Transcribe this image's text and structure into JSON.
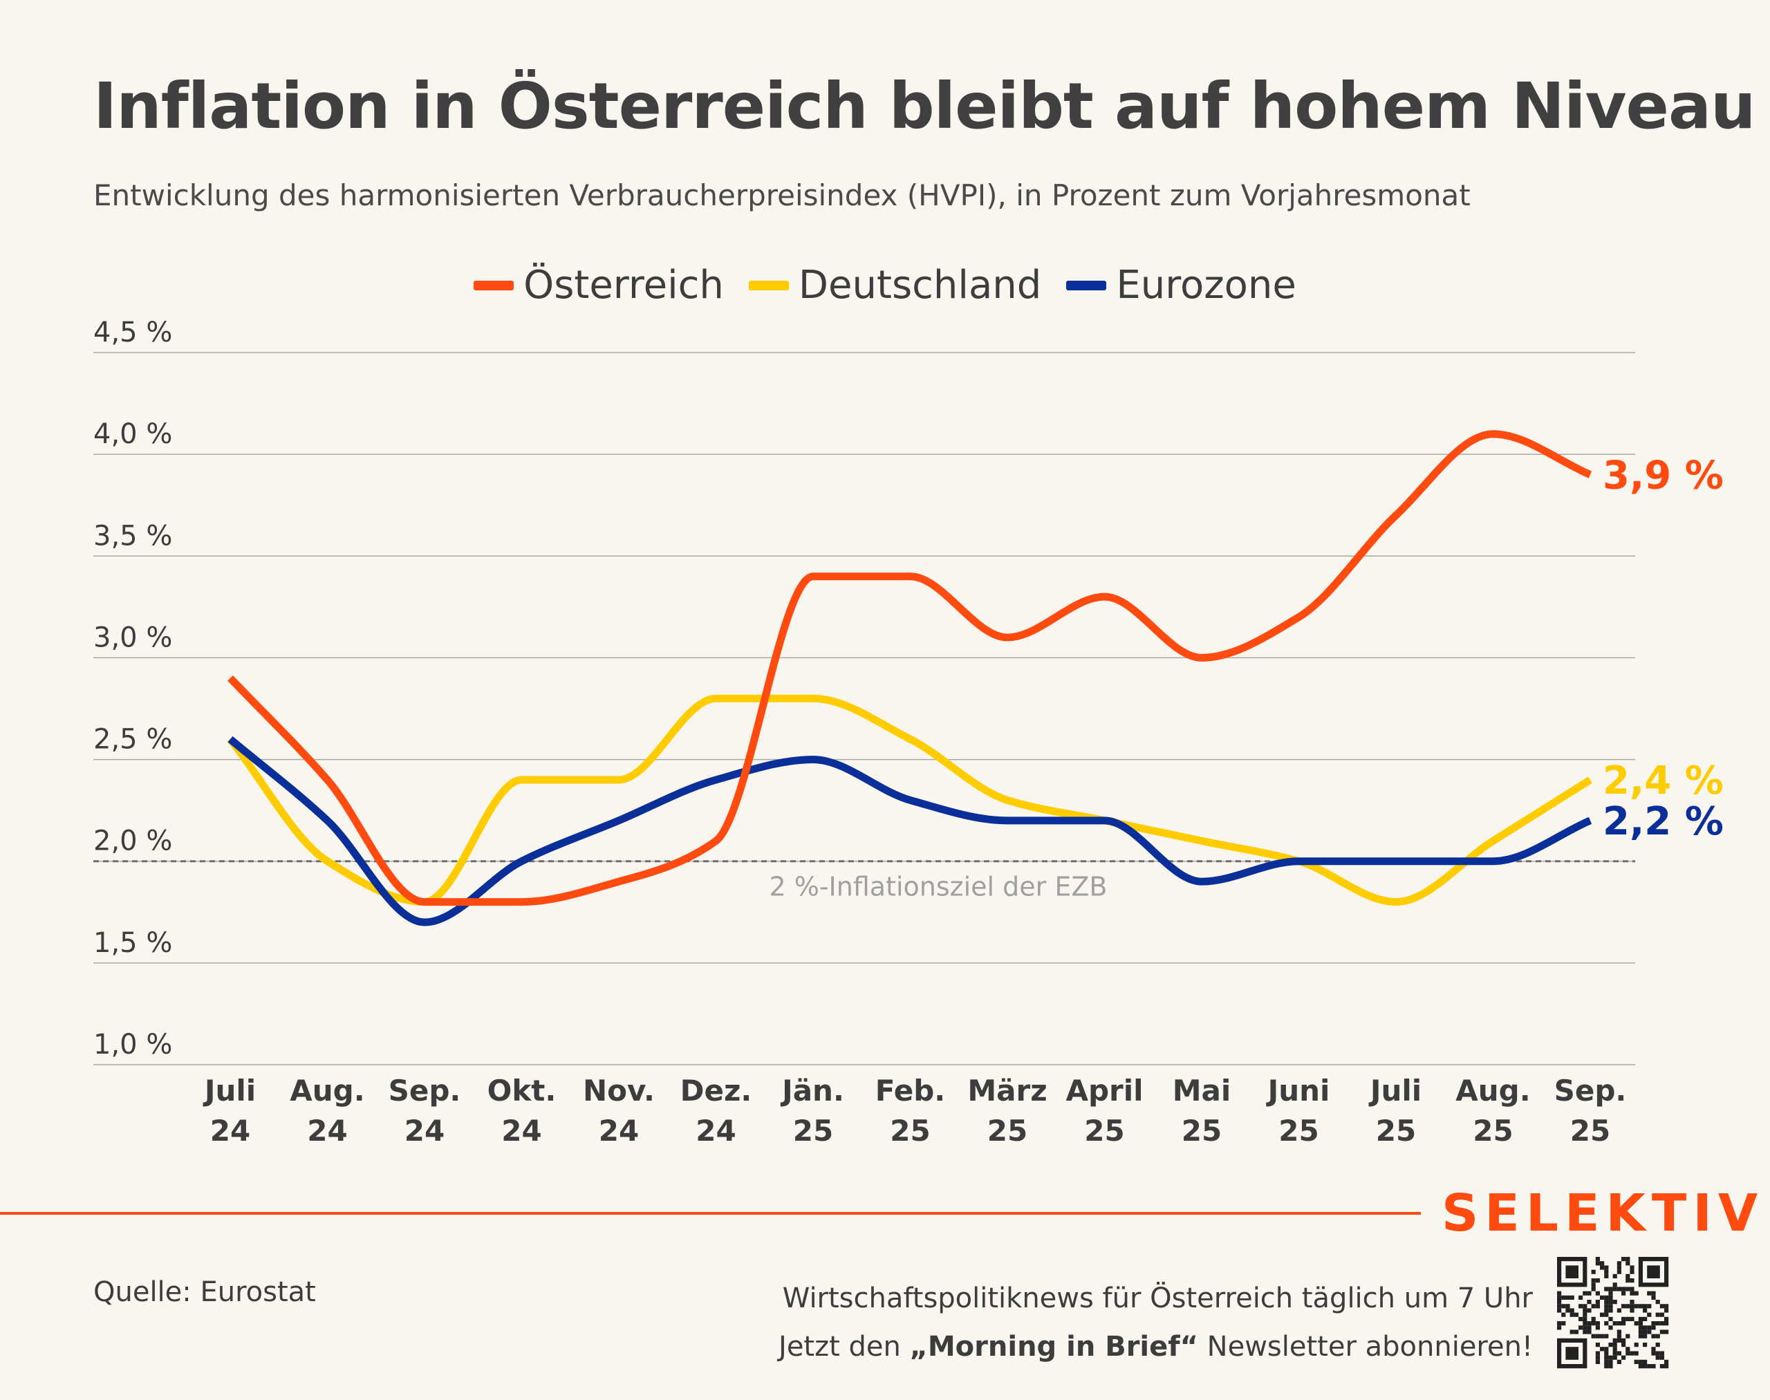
{
  "title": "Inflation in Österreich bleibt auf hohem Niveau",
  "subtitle": "Entwicklung des harmonisierten Verbraucherpreisindex (HVPI), in Prozent zum Vorjahresmonat",
  "colors": {
    "background": "#f8f6ee",
    "austria": "#ff4a10",
    "germany": "#ffcc00",
    "eurozone": "#0a2f99",
    "grid": "#9a9a9a",
    "target": "#7a7a7a",
    "text": "#3d3d3d"
  },
  "chart_data": {
    "type": "line",
    "ylim": [
      1.0,
      4.5
    ],
    "yticks": [
      {
        "value": 1.0,
        "label": "1,0 %"
      },
      {
        "value": 1.5,
        "label": "1,5 %"
      },
      {
        "value": 2.0,
        "label": "2,0 %"
      },
      {
        "value": 2.5,
        "label": "2,5 %"
      },
      {
        "value": 3.0,
        "label": "3,0 %"
      },
      {
        "value": 3.5,
        "label": "3,5 %"
      },
      {
        "value": 4.0,
        "label": "4,0 %"
      },
      {
        "value": 4.5,
        "label": "4,5 %"
      }
    ],
    "categories": [
      {
        "month": "Juli",
        "year": "24"
      },
      {
        "month": "Aug.",
        "year": "24"
      },
      {
        "month": "Sep.",
        "year": "24"
      },
      {
        "month": "Okt.",
        "year": "24"
      },
      {
        "month": "Nov.",
        "year": "24"
      },
      {
        "month": "Dez.",
        "year": "24"
      },
      {
        "month": "Jän.",
        "year": "25"
      },
      {
        "month": "Feb.",
        "year": "25"
      },
      {
        "month": "März",
        "year": "25"
      },
      {
        "month": "April",
        "year": "25"
      },
      {
        "month": "Mai",
        "year": "25"
      },
      {
        "month": "Juni",
        "year": "25"
      },
      {
        "month": "Juli",
        "year": "25"
      },
      {
        "month": "Aug.",
        "year": "25"
      },
      {
        "month": "Sep.",
        "year": "25"
      }
    ],
    "series": [
      {
        "name": "Österreich",
        "color": "#ff4a10",
        "end_label": "3,9 %",
        "values": [
          2.9,
          2.4,
          1.8,
          1.8,
          1.9,
          2.1,
          3.4,
          3.4,
          3.1,
          3.3,
          3.0,
          3.2,
          3.7,
          4.1,
          3.9
        ]
      },
      {
        "name": "Deutschland",
        "color": "#ffcc00",
        "end_label": "2,4 %",
        "values": [
          2.6,
          2.0,
          1.8,
          2.4,
          2.4,
          2.8,
          2.8,
          2.6,
          2.3,
          2.2,
          2.1,
          2.0,
          1.8,
          2.1,
          2.4
        ]
      },
      {
        "name": "Eurozone",
        "color": "#0a2f99",
        "end_label": "2,2 %",
        "values": [
          2.6,
          2.2,
          1.7,
          2.0,
          2.2,
          2.4,
          2.5,
          2.3,
          2.2,
          2.2,
          1.9,
          2.0,
          2.0,
          2.0,
          2.2
        ]
      }
    ],
    "reference_line": {
      "value": 2.0,
      "label": "2 %-Inflationsziel der EZB"
    },
    "legend": "top-center",
    "grid": true
  },
  "footer": {
    "brand": "SELEKTIV",
    "source": "Quelle: Eurostat",
    "promo_line1": "Wirtschaftspolitiknews für Österreich täglich um 7 Uhr",
    "promo_line2_pre": "Jetzt den ",
    "promo_line2_bold": "„Morning in Brief“",
    "promo_line2_post": " Newsletter abonnieren!",
    "qr_icon": "qr-code-icon"
  }
}
